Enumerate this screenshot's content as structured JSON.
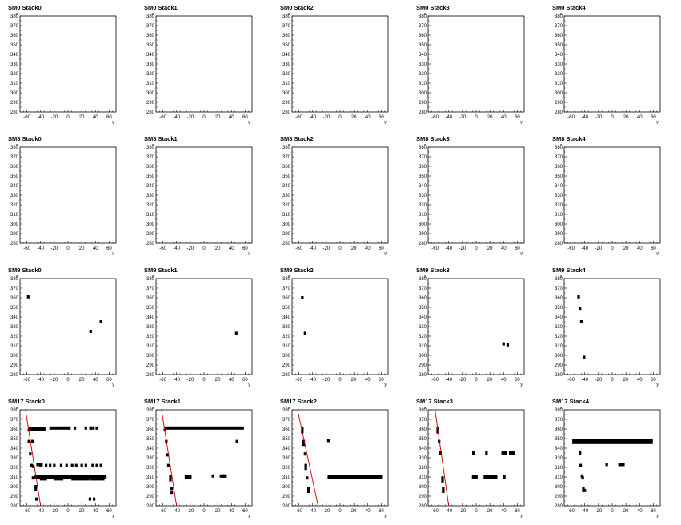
{
  "chart_data": [
    {
      "type": "scatter",
      "title": "SM0 Stack0",
      "xlabel": "y",
      "ylabel": "x",
      "xlim": [
        -70,
        70
      ],
      "ylim": [
        280,
        380
      ],
      "xticks": [
        "-60",
        "-40",
        "-20",
        "0",
        "20",
        "40",
        "60"
      ],
      "yticks": [
        "280",
        "290",
        "300",
        "310",
        "320",
        "330",
        "340",
        "350",
        "360",
        "370",
        "380"
      ],
      "points": [],
      "segments": [],
      "fit_lines": []
    },
    {
      "type": "scatter",
      "title": "SM0 Stack1",
      "xlabel": "y",
      "ylabel": "x",
      "xlim": [
        -70,
        70
      ],
      "ylim": [
        280,
        380
      ],
      "xticks": [
        "-60",
        "-40",
        "-20",
        "0",
        "20",
        "40",
        "60"
      ],
      "yticks": [
        "280",
        "290",
        "300",
        "310",
        "320",
        "330",
        "340",
        "350",
        "360",
        "370",
        "380"
      ],
      "points": [],
      "segments": [],
      "fit_lines": []
    },
    {
      "type": "scatter",
      "title": "SM0 Stack2",
      "xlabel": "y",
      "ylabel": "x",
      "xlim": [
        -70,
        70
      ],
      "ylim": [
        280,
        380
      ],
      "xticks": [
        "-60",
        "-40",
        "-20",
        "0",
        "20",
        "40",
        "60"
      ],
      "yticks": [
        "280",
        "290",
        "300",
        "310",
        "320",
        "330",
        "340",
        "350",
        "360",
        "370",
        "380"
      ],
      "points": [],
      "segments": [],
      "fit_lines": []
    },
    {
      "type": "scatter",
      "title": "SM0 Stack3",
      "xlabel": "y",
      "ylabel": "x",
      "xlim": [
        -70,
        70
      ],
      "ylim": [
        280,
        380
      ],
      "xticks": [
        "-60",
        "-40",
        "-20",
        "0",
        "20",
        "40",
        "60"
      ],
      "yticks": [
        "280",
        "290",
        "300",
        "310",
        "320",
        "330",
        "340",
        "350",
        "360",
        "370",
        "380"
      ],
      "points": [],
      "segments": [],
      "fit_lines": []
    },
    {
      "type": "scatter",
      "title": "SM0 Stack4",
      "xlabel": "y",
      "ylabel": "x",
      "xlim": [
        -70,
        70
      ],
      "ylim": [
        280,
        380
      ],
      "xticks": [
        "-60",
        "-40",
        "-20",
        "0",
        "20",
        "40",
        "60"
      ],
      "yticks": [
        "280",
        "290",
        "300",
        "310",
        "320",
        "330",
        "340",
        "350",
        "360",
        "370",
        "380"
      ],
      "points": [],
      "segments": [],
      "fit_lines": []
    },
    {
      "type": "scatter",
      "title": "SM8 Stack0",
      "xlabel": "y",
      "ylabel": "x",
      "xlim": [
        -70,
        70
      ],
      "ylim": [
        280,
        380
      ],
      "xticks": [
        "-60",
        "-40",
        "-20",
        "0",
        "20",
        "40",
        "60"
      ],
      "yticks": [
        "280",
        "290",
        "300",
        "310",
        "320",
        "330",
        "340",
        "350",
        "360",
        "370",
        "380"
      ],
      "points": [],
      "segments": [],
      "fit_lines": []
    },
    {
      "type": "scatter",
      "title": "SM8 Stack1",
      "xlabel": "y",
      "ylabel": "x",
      "xlim": [
        -70,
        70
      ],
      "ylim": [
        280,
        380
      ],
      "xticks": [
        "-60",
        "-40",
        "-20",
        "0",
        "20",
        "40",
        "60"
      ],
      "yticks": [
        "280",
        "290",
        "300",
        "310",
        "320",
        "330",
        "340",
        "350",
        "360",
        "370",
        "380"
      ],
      "points": [],
      "segments": [],
      "fit_lines": []
    },
    {
      "type": "scatter",
      "title": "SM8 Stack2",
      "xlabel": "y",
      "ylabel": "x",
      "xlim": [
        -70,
        70
      ],
      "ylim": [
        280,
        380
      ],
      "xticks": [
        "-60",
        "-40",
        "-20",
        "0",
        "20",
        "40",
        "60"
      ],
      "yticks": [
        "280",
        "290",
        "300",
        "310",
        "320",
        "330",
        "340",
        "350",
        "360",
        "370",
        "380"
      ],
      "points": [],
      "segments": [],
      "fit_lines": []
    },
    {
      "type": "scatter",
      "title": "SM8 Stack3",
      "xlabel": "y",
      "ylabel": "x",
      "xlim": [
        -70,
        70
      ],
      "ylim": [
        280,
        380
      ],
      "xticks": [
        "-60",
        "-40",
        "-20",
        "0",
        "20",
        "40",
        "60"
      ],
      "yticks": [
        "280",
        "290",
        "300",
        "310",
        "320",
        "330",
        "340",
        "350",
        "360",
        "370",
        "380"
      ],
      "points": [],
      "segments": [],
      "fit_lines": []
    },
    {
      "type": "scatter",
      "title": "SM8 Stack4",
      "xlabel": "y",
      "ylabel": "x",
      "xlim": [
        -70,
        70
      ],
      "ylim": [
        280,
        380
      ],
      "xticks": [
        "-60",
        "-40",
        "-20",
        "0",
        "20",
        "40",
        "60"
      ],
      "yticks": [
        "280",
        "290",
        "300",
        "310",
        "320",
        "330",
        "340",
        "350",
        "360",
        "370",
        "380"
      ],
      "points": [],
      "segments": [],
      "fit_lines": []
    },
    {
      "type": "scatter",
      "title": "SM9 Stack0",
      "xlabel": "y",
      "ylabel": "x",
      "xlim": [
        -70,
        70
      ],
      "ylim": [
        280,
        380
      ],
      "xticks": [
        "-60",
        "-40",
        "-20",
        "0",
        "20",
        "40",
        "60"
      ],
      "yticks": [
        "280",
        "290",
        "300",
        "310",
        "320",
        "330",
        "340",
        "350",
        "360",
        "370",
        "380"
      ],
      "points": [
        [
          -58,
          361
        ],
        [
          33,
          325
        ],
        [
          48,
          335
        ]
      ],
      "segments": [],
      "fit_lines": []
    },
    {
      "type": "scatter",
      "title": "SM9 Stack1",
      "xlabel": "y",
      "ylabel": "x",
      "xlim": [
        -70,
        70
      ],
      "ylim": [
        280,
        380
      ],
      "xticks": [
        "-60",
        "-40",
        "-20",
        "0",
        "20",
        "40",
        "60"
      ],
      "yticks": [
        "280",
        "290",
        "300",
        "310",
        "320",
        "330",
        "340",
        "350",
        "360",
        "370",
        "380"
      ],
      "points": [
        [
          47,
          323
        ]
      ],
      "segments": [],
      "fit_lines": []
    },
    {
      "type": "scatter",
      "title": "SM9 Stack2",
      "xlabel": "y",
      "ylabel": "x",
      "xlim": [
        -70,
        70
      ],
      "ylim": [
        280,
        380
      ],
      "xticks": [
        "-60",
        "-40",
        "-20",
        "0",
        "20",
        "40",
        "60"
      ],
      "yticks": [
        "280",
        "290",
        "300",
        "310",
        "320",
        "330",
        "340",
        "350",
        "360",
        "370",
        "380"
      ],
      "points": [
        [
          -55,
          360
        ],
        [
          -51,
          323
        ]
      ],
      "segments": [],
      "fit_lines": []
    },
    {
      "type": "scatter",
      "title": "SM9 Stack3",
      "xlabel": "y",
      "ylabel": "x",
      "xlim": [
        -70,
        70
      ],
      "ylim": [
        280,
        380
      ],
      "xticks": [
        "-60",
        "-40",
        "-20",
        "0",
        "20",
        "40",
        "60"
      ],
      "yticks": [
        "280",
        "290",
        "300",
        "310",
        "320",
        "330",
        "340",
        "350",
        "360",
        "370",
        "380"
      ],
      "points": [
        [
          40,
          312
        ],
        [
          46,
          311
        ]
      ],
      "segments": [],
      "fit_lines": []
    },
    {
      "type": "scatter",
      "title": "SM9 Stack4",
      "xlabel": "y",
      "ylabel": "x",
      "xlim": [
        -70,
        70
      ],
      "ylim": [
        280,
        380
      ],
      "xticks": [
        "-60",
        "-40",
        "-20",
        "0",
        "20",
        "40",
        "60"
      ],
      "yticks": [
        "280",
        "290",
        "300",
        "310",
        "320",
        "330",
        "340",
        "350",
        "360",
        "370",
        "380"
      ],
      "points": [
        [
          -49,
          361
        ],
        [
          -47,
          349
        ],
        [
          -45,
          335
        ],
        [
          -41,
          298
        ]
      ],
      "segments": [],
      "fit_lines": []
    },
    {
      "type": "scatter",
      "title": "SM17 Stack0",
      "xlabel": "y",
      "ylabel": "x",
      "xlim": [
        -70,
        70
      ],
      "ylim": [
        280,
        380
      ],
      "xticks": [
        "-60",
        "-40",
        "-20",
        "0",
        "20",
        "40",
        "60"
      ],
      "yticks": [
        "280",
        "290",
        "300",
        "310",
        "320",
        "330",
        "340",
        "350",
        "360",
        "370",
        "380"
      ],
      "points": [
        [
          -57,
          359
        ],
        [
          -57,
          347
        ],
        [
          -52,
          347
        ],
        [
          -55,
          334
        ],
        [
          -53,
          322
        ],
        [
          -51,
          321
        ],
        [
          -51,
          309
        ],
        [
          -47,
          300
        ],
        [
          -47,
          297
        ],
        [
          -46,
          287
        ],
        [
          0,
          361
        ],
        [
          2,
          361
        ],
        [
          10,
          361
        ],
        [
          26,
          361
        ],
        [
          33,
          361
        ],
        [
          37,
          361
        ],
        [
          42,
          361
        ],
        [
          33,
          361
        ],
        [
          32,
          287
        ],
        [
          38,
          287
        ],
        [
          -40,
          322
        ],
        [
          -32,
          322
        ],
        [
          -26,
          322
        ],
        [
          -20,
          322
        ],
        [
          -10,
          322
        ],
        [
          -2,
          322
        ],
        [
          6,
          322
        ],
        [
          12,
          322
        ],
        [
          20,
          322
        ],
        [
          26,
          322
        ],
        [
          36,
          322
        ],
        [
          42,
          322
        ],
        [
          48,
          322
        ]
      ],
      "segments": [
        [
          -57,
          -34,
          360
        ],
        [
          -26,
          -2,
          361
        ],
        [
          -45,
          -38,
          323
        ],
        [
          -48,
          55,
          310
        ],
        [
          -40,
          -32,
          308
        ],
        [
          -20,
          -8,
          308
        ],
        [
          6,
          30,
          308
        ],
        [
          34,
          52,
          308
        ]
      ],
      "fit_lines": [
        [
          -62,
          380,
          -40,
          280
        ]
      ]
    },
    {
      "type": "scatter",
      "title": "SM17 Stack1",
      "xlabel": "y",
      "ylabel": "x",
      "xlim": [
        -70,
        70
      ],
      "ylim": [
        280,
        380
      ],
      "xticks": [
        "-60",
        "-40",
        "-20",
        "0",
        "20",
        "40",
        "60"
      ],
      "yticks": [
        "280",
        "290",
        "300",
        "310",
        "320",
        "330",
        "340",
        "350",
        "360",
        "370",
        "380"
      ],
      "points": [
        [
          -57,
          359
        ],
        [
          -55,
          347
        ],
        [
          -53,
          333
        ],
        [
          -52,
          322
        ],
        [
          -49,
          310
        ],
        [
          -49,
          307
        ],
        [
          -47,
          298
        ],
        [
          -47,
          294
        ],
        [
          -20,
          310
        ],
        [
          13,
          311
        ],
        [
          27,
          311
        ],
        [
          30,
          311
        ],
        [
          48,
          347
        ]
      ],
      "segments": [
        [
          -57,
          57,
          361
        ],
        [
          -27,
          -20,
          310
        ],
        [
          24,
          32,
          311
        ]
      ],
      "fit_lines": [
        [
          -62,
          380,
          -40,
          280
        ]
      ]
    },
    {
      "type": "scatter",
      "title": "SM17 Stack2",
      "xlabel": "y",
      "ylabel": "x",
      "xlim": [
        -70,
        70
      ],
      "ylim": [
        280,
        380
      ],
      "xticks": [
        "-60",
        "-40",
        "-20",
        "0",
        "20",
        "40",
        "60"
      ],
      "yticks": [
        "280",
        "290",
        "300",
        "310",
        "320",
        "330",
        "340",
        "350",
        "360",
        "370",
        "380"
      ],
      "points": [
        [
          -55,
          360
        ],
        [
          -55,
          357
        ],
        [
          -53,
          347
        ],
        [
          -53,
          344
        ],
        [
          -51,
          334
        ],
        [
          -50,
          322
        ],
        [
          -50,
          319
        ],
        [
          -48,
          309
        ],
        [
          -46,
          298
        ],
        [
          -46,
          295
        ],
        [
          -17,
          348
        ]
      ],
      "segments": [
        [
          -17,
          60,
          310
        ]
      ],
      "fit_lines": [
        [
          -62,
          380,
          -32,
          280
        ]
      ]
    },
    {
      "type": "scatter",
      "title": "SM17 Stack3",
      "xlabel": "y",
      "ylabel": "x",
      "xlim": [
        -70,
        70
      ],
      "ylim": [
        280,
        380
      ],
      "xticks": [
        "-60",
        "-40",
        "-20",
        "0",
        "20",
        "40",
        "60"
      ],
      "yticks": [
        "280",
        "290",
        "300",
        "310",
        "320",
        "330",
        "340",
        "350",
        "360",
        "370",
        "380"
      ],
      "points": [
        [
          -56,
          360
        ],
        [
          -56,
          357
        ],
        [
          -54,
          347
        ],
        [
          -52,
          335
        ],
        [
          -49,
          309
        ],
        [
          -49,
          306
        ],
        [
          -48,
          298
        ],
        [
          -48,
          295
        ],
        [
          -4,
          335
        ],
        [
          -3,
          310
        ],
        [
          15,
          335
        ],
        [
          29,
          310
        ],
        [
          41,
          335
        ],
        [
          41,
          310
        ],
        [
          52,
          335
        ]
      ],
      "segments": [
        [
          -5,
          1,
          310
        ],
        [
          12,
          28,
          310
        ],
        [
          38,
          44,
          335
        ],
        [
          49,
          55,
          335
        ]
      ],
      "fit_lines": [
        [
          -60,
          380,
          -40,
          280
        ]
      ]
    },
    {
      "type": "scatter",
      "title": "SM17 Stack4",
      "xlabel": "y",
      "ylabel": "x",
      "xlim": [
        -70,
        70
      ],
      "ylim": [
        280,
        380
      ],
      "xticks": [
        "-60",
        "-40",
        "-20",
        "0",
        "20",
        "40",
        "60"
      ],
      "yticks": [
        "280",
        "290",
        "300",
        "310",
        "320",
        "330",
        "340",
        "350",
        "360",
        "370",
        "380"
      ],
      "points": [
        [
          -47,
          335
        ],
        [
          -46,
          322
        ],
        [
          -44,
          311
        ],
        [
          -43,
          309
        ],
        [
          -42,
          298
        ],
        [
          -42,
          296
        ],
        [
          -40,
          296
        ],
        [
          -8,
          323
        ],
        [
          12,
          323
        ],
        [
          15,
          323
        ]
      ],
      "segments": [
        [
          -57,
          58,
          346
        ],
        [
          -57,
          58,
          348
        ],
        [
          10,
          17,
          323
        ]
      ],
      "fit_lines": []
    }
  ]
}
